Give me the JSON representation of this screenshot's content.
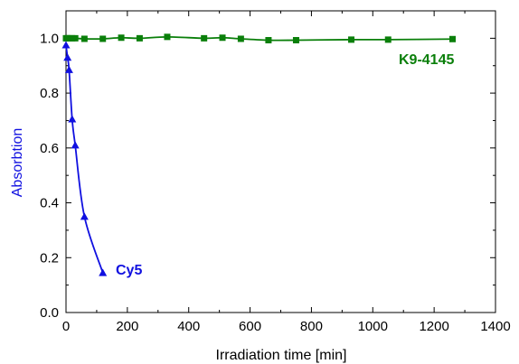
{
  "chart_data": {
    "type": "scatter",
    "xlabel": "Irradiation time [min]",
    "ylabel": "Absorbtion",
    "xlim": [
      0,
      1400
    ],
    "ylim": [
      0,
      1.1
    ],
    "x_ticks": [
      0,
      200,
      400,
      600,
      800,
      1000,
      1200,
      1400
    ],
    "y_ticks": [
      0.0,
      0.2,
      0.4,
      0.6,
      0.8,
      1.0
    ],
    "x_tick_labels": [
      "0",
      "200",
      "400",
      "600",
      "800",
      "1000",
      "1200",
      "1400"
    ],
    "y_tick_labels": [
      "0.0",
      "0.2",
      "0.4",
      "0.6",
      "0.8",
      "1.0"
    ],
    "grid": false,
    "colors": {
      "axis": "#000000",
      "ylabel": "#1010e0"
    },
    "series": [
      {
        "name": "K9-4145",
        "color": "#0a7f0a",
        "marker": "square",
        "x": [
          0,
          5,
          10,
          20,
          30,
          60,
          120,
          180,
          240,
          330,
          450,
          510,
          570,
          660,
          750,
          930,
          1050,
          1260
        ],
        "y": [
          1.0,
          1.0,
          1.0,
          1.0,
          1.0,
          0.998,
          0.998,
          1.002,
          1.0,
          1.005,
          1.0,
          1.002,
          0.998,
          0.993,
          0.993,
          0.995,
          0.995,
          0.997
        ]
      },
      {
        "name": "Cy5",
        "color": "#1010e0",
        "marker": "triangle",
        "x": [
          0,
          5,
          10,
          20,
          30,
          60,
          120
        ],
        "y": [
          0.975,
          0.93,
          0.885,
          0.705,
          0.61,
          0.35,
          0.145
        ]
      }
    ]
  }
}
